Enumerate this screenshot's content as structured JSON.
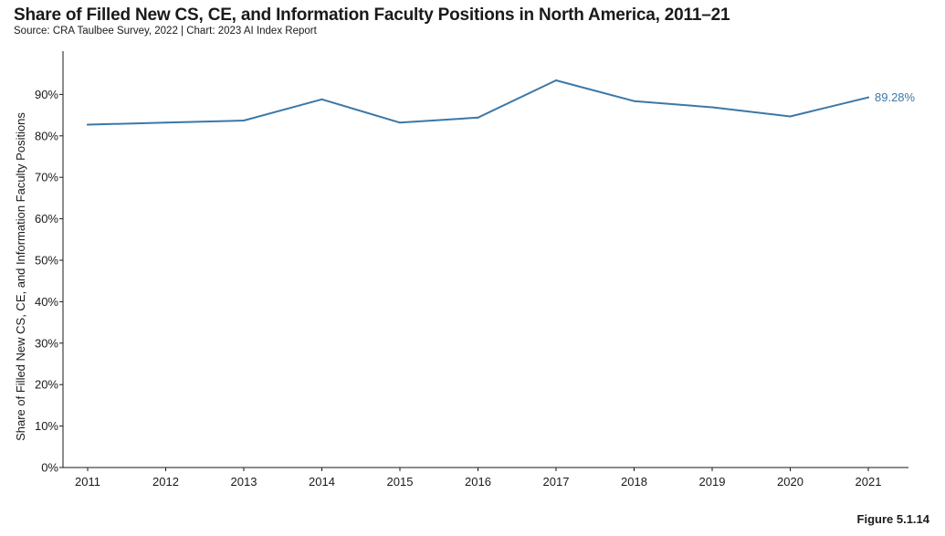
{
  "header": {
    "title": "Share of Filled New CS, CE, and Information Faculty Positions in North America, 2011–21",
    "source": "Source: CRA Taulbee Survey, 2022 | Chart: 2023 AI Index Report"
  },
  "footer": {
    "figure_label": "Figure 5.1.14"
  },
  "colors": {
    "series": "#3a78a8",
    "axis": "#1a1a1a"
  },
  "chart_data": {
    "type": "line",
    "title": "Share of Filled New CS, CE, and Information Faculty Positions in North America, 2011–21",
    "xlabel": "",
    "ylabel": "Share of Filled New CS, CE, and Information Faculty Positions",
    "x": [
      "2011",
      "2012",
      "2013",
      "2014",
      "2015",
      "2016",
      "2017",
      "2018",
      "2019",
      "2020",
      "2021"
    ],
    "series": [
      {
        "values": [
          82.7,
          83.2,
          83.7,
          88.8,
          83.2,
          84.4,
          93.4,
          88.4,
          86.9,
          84.7,
          89.28
        ],
        "end_label": "89.28%"
      }
    ],
    "ylim": [
      0,
      100
    ],
    "yticks": [
      0,
      10,
      20,
      30,
      40,
      50,
      60,
      70,
      80,
      90
    ],
    "ytick_labels": [
      "0%",
      "10%",
      "20%",
      "30%",
      "40%",
      "50%",
      "60%",
      "70%",
      "80%",
      "90%"
    ],
    "grid": false,
    "legend": "none"
  }
}
